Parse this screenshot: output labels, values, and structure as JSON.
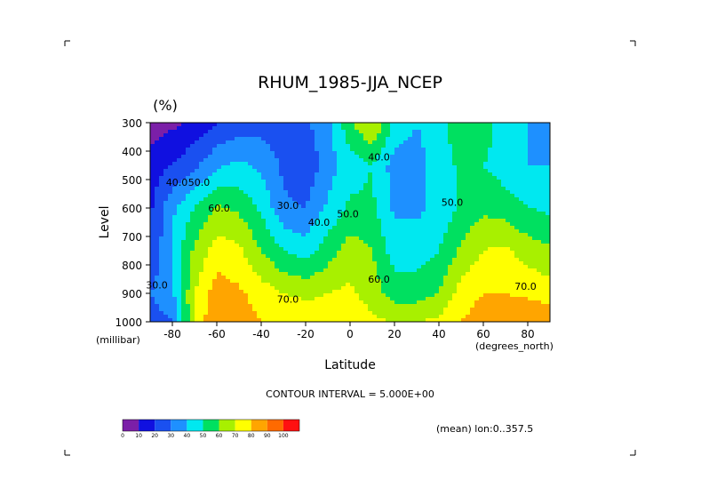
{
  "chart_data": {
    "type": "heatmap",
    "subtype": "filled-contour",
    "title": "RHUM_1985-JJA_NCEP",
    "unit": "(%)",
    "ylabel": "Level",
    "y_unit": "(millibar)",
    "xlabel": "Latitude",
    "x_unit": "(degrees_north)",
    "xlim": [
      -90,
      90
    ],
    "ylim": [
      300,
      1000
    ],
    "y_inverted": true,
    "x_ticks": [
      -80,
      -60,
      -40,
      -20,
      0,
      20,
      40,
      60,
      80
    ],
    "x_tick_labels": [
      "-80",
      "-60",
      "-40",
      "-20",
      "0",
      "20",
      "40",
      "60",
      "80"
    ],
    "y_ticks": [
      300,
      400,
      500,
      600,
      700,
      800,
      900,
      1000
    ],
    "y_tick_labels": [
      "300",
      "400",
      "500",
      "600",
      "700",
      "800",
      "900",
      "1000"
    ],
    "contour_interval_text": "CONTOUR INTERVAL = 5.000E+00",
    "region_text": "(mean) lon:0..357.5",
    "contour_labels": [
      {
        "text": "40.0",
        "x": -78,
        "y": 510
      },
      {
        "text": "50.0",
        "x": -68,
        "y": 510
      },
      {
        "text": "60.0",
        "x": -59,
        "y": 600
      },
      {
        "text": "30.0",
        "x": -28,
        "y": 590
      },
      {
        "text": "40.0",
        "x": -14,
        "y": 650
      },
      {
        "text": "50.0",
        "x": -1,
        "y": 620
      },
      {
        "text": "40.0",
        "x": 13,
        "y": 420
      },
      {
        "text": "50.0",
        "x": 46,
        "y": 580
      },
      {
        "text": "60.0",
        "x": 13,
        "y": 850
      },
      {
        "text": "70.0",
        "x": -28,
        "y": 920
      },
      {
        "text": "70.0",
        "x": 79,
        "y": 875
      },
      {
        "text": "30.0",
        "x": -87,
        "y": 870
      }
    ],
    "colorbar": {
      "levels": [
        0,
        10,
        20,
        30,
        40,
        50,
        60,
        70,
        80,
        90,
        100
      ],
      "labels": [
        "0",
        "10",
        "20",
        "30",
        "40",
        "50",
        "60",
        "70",
        "80",
        "90",
        "100"
      ],
      "colors": [
        "#7b1fa8",
        "#1010e0",
        "#1a50f0",
        "#1e90ff",
        "#00e8f0",
        "#00e060",
        "#a8f000",
        "#ffff00",
        "#ffa500",
        "#ff6a00",
        "#ff1010"
      ]
    },
    "z_columns": [
      {
        "lat": -90,
        "p": [
          300,
          450,
          600,
          750,
          900,
          1000
        ],
        "v": [
          5,
          15,
          18,
          20,
          30,
          25
        ]
      },
      {
        "lat": -80,
        "p": [
          300,
          450,
          600,
          750,
          900,
          1000
        ],
        "v": [
          8,
          20,
          38,
          42,
          38,
          30
        ]
      },
      {
        "lat": -70,
        "p": [
          300,
          450,
          600,
          750,
          900,
          1000
        ],
        "v": [
          12,
          28,
          50,
          62,
          70,
          72
        ]
      },
      {
        "lat": -60,
        "p": [
          300,
          450,
          600,
          750,
          900,
          1000
        ],
        "v": [
          20,
          38,
          62,
          75,
          85,
          90
        ]
      },
      {
        "lat": -50,
        "p": [
          300,
          450,
          600,
          750,
          900,
          1000
        ],
        "v": [
          25,
          42,
          58,
          72,
          82,
          85
        ]
      },
      {
        "lat": -40,
        "p": [
          300,
          450,
          600,
          750,
          900,
          1000
        ],
        "v": [
          25,
          38,
          48,
          60,
          75,
          80
        ]
      },
      {
        "lat": -30,
        "p": [
          300,
          450,
          600,
          750,
          900,
          1000
        ],
        "v": [
          25,
          28,
          32,
          50,
          70,
          78
        ]
      },
      {
        "lat": -20,
        "p": [
          300,
          450,
          600,
          750,
          900,
          1000
        ],
        "v": [
          28,
          22,
          30,
          45,
          68,
          76
        ]
      },
      {
        "lat": -10,
        "p": [
          300,
          450,
          600,
          750,
          900,
          1000
        ],
        "v": [
          38,
          35,
          42,
          55,
          70,
          76
        ]
      },
      {
        "lat": 0,
        "p": [
          300,
          450,
          600,
          750,
          900,
          1000
        ],
        "v": [
          58,
          45,
          52,
          65,
          72,
          78
        ]
      },
      {
        "lat": 10,
        "p": [
          300,
          450,
          600,
          750,
          900,
          1000
        ],
        "v": [
          72,
          50,
          52,
          60,
          65,
          72
        ]
      },
      {
        "lat": 20,
        "p": [
          300,
          450,
          600,
          750,
          900,
          1000
        ],
        "v": [
          48,
          35,
          38,
          45,
          55,
          70
        ]
      },
      {
        "lat": 30,
        "p": [
          300,
          450,
          600,
          750,
          900,
          1000
        ],
        "v": [
          40,
          35,
          38,
          45,
          55,
          70
        ]
      },
      {
        "lat": 40,
        "p": [
          300,
          450,
          600,
          750,
          900,
          1000
        ],
        "v": [
          48,
          45,
          42,
          50,
          60,
          72
        ]
      },
      {
        "lat": 50,
        "p": [
          300,
          450,
          600,
          750,
          900,
          1000
        ],
        "v": [
          55,
          52,
          52,
          62,
          75,
          80
        ]
      },
      {
        "lat": 60,
        "p": [
          300,
          450,
          600,
          750,
          900,
          1000
        ],
        "v": [
          55,
          50,
          58,
          70,
          80,
          85
        ]
      },
      {
        "lat": 70,
        "p": [
          300,
          450,
          600,
          750,
          900,
          1000
        ],
        "v": [
          45,
          45,
          55,
          72,
          80,
          88
        ]
      },
      {
        "lat": 80,
        "p": [
          300,
          450,
          600,
          750,
          900,
          1000
        ],
        "v": [
          40,
          40,
          50,
          65,
          78,
          90
        ]
      },
      {
        "lat": 90,
        "p": [
          300,
          450,
          600,
          750,
          900,
          1000
        ],
        "v": [
          35,
          40,
          48,
          62,
          75,
          88
        ]
      }
    ]
  }
}
